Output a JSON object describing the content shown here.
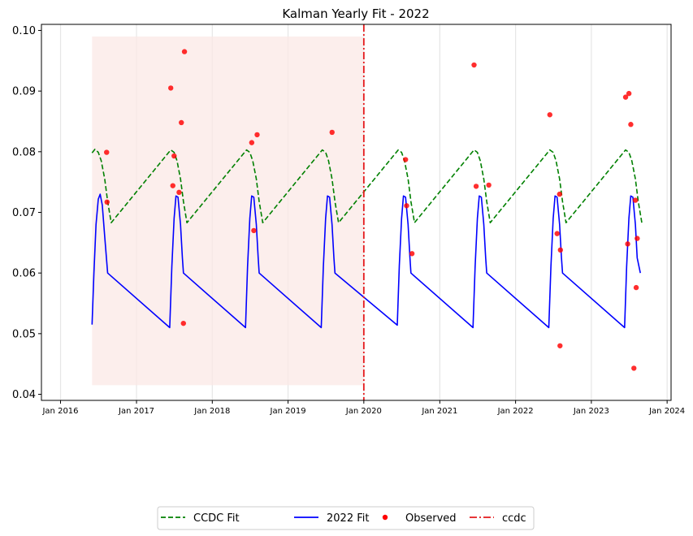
{
  "chart_data": {
    "type": "line",
    "title": "Kalman Yearly Fit - 2022",
    "xlabel": "",
    "ylabel": "",
    "xlim": [
      "2015-10-01",
      "2024-01-20"
    ],
    "ylim": [
      0.039,
      0.101
    ],
    "x_ticks": [
      {
        "date": "2016-01-01",
        "label": "Jan 2016"
      },
      {
        "date": "2017-01-01",
        "label": "Jan 2017"
      },
      {
        "date": "2018-01-01",
        "label": "Jan 2018"
      },
      {
        "date": "2019-01-01",
        "label": "Jan 2019"
      },
      {
        "date": "2020-01-01",
        "label": "Jan 2020"
      },
      {
        "date": "2021-01-01",
        "label": "Jan 2021"
      },
      {
        "date": "2022-01-01",
        "label": "Jan 2022"
      },
      {
        "date": "2023-01-01",
        "label": "Jan 2023"
      },
      {
        "date": "2024-01-01",
        "label": "Jan 2024"
      }
    ],
    "y_ticks": [
      {
        "value": 0.04,
        "label": "0.04"
      },
      {
        "value": 0.05,
        "label": "0.05"
      },
      {
        "value": 0.06,
        "label": "0.06"
      },
      {
        "value": 0.07,
        "label": "0.07"
      },
      {
        "value": 0.08,
        "label": "0.08"
      },
      {
        "value": 0.09,
        "label": "0.09"
      },
      {
        "value": 0.1,
        "label": "0.10"
      }
    ],
    "grid": "vertical",
    "shaded_region": {
      "x_start": "2016-06-01",
      "x_end": "2019-12-31",
      "y_min": 0.0415,
      "y_max": 0.099,
      "color": "#fbe8e6"
    },
    "vlines": [
      {
        "name": "ccdc",
        "date": "2020-01-01",
        "color": "#e41a1c",
        "style": "dashdot"
      }
    ],
    "series": [
      {
        "name": "CCDC Fit",
        "color": "#008000",
        "style": "dashed",
        "points": [
          [
            "2016-06-01",
            0.0798
          ],
          [
            "2016-06-15",
            0.0804
          ],
          [
            "2016-07-01",
            0.0799
          ],
          [
            "2016-07-15",
            0.0785
          ],
          [
            "2016-08-01",
            0.0755
          ],
          [
            "2016-08-15",
            0.0718
          ],
          [
            "2016-09-01",
            0.0683
          ],
          [
            "2017-06-15",
            0.0803
          ],
          [
            "2017-07-01",
            0.0799
          ],
          [
            "2017-07-15",
            0.0785
          ],
          [
            "2017-08-01",
            0.0755
          ],
          [
            "2017-08-15",
            0.0718
          ],
          [
            "2017-09-01",
            0.0683
          ],
          [
            "2018-06-15",
            0.0803
          ],
          [
            "2018-07-01",
            0.0799
          ],
          [
            "2018-07-15",
            0.0785
          ],
          [
            "2018-08-01",
            0.0755
          ],
          [
            "2018-08-15",
            0.0718
          ],
          [
            "2018-09-01",
            0.0683
          ],
          [
            "2019-06-15",
            0.0803
          ],
          [
            "2019-07-01",
            0.0799
          ],
          [
            "2019-07-15",
            0.0785
          ],
          [
            "2019-08-01",
            0.0755
          ],
          [
            "2019-08-15",
            0.0718
          ],
          [
            "2019-09-01",
            0.0683
          ],
          [
            "2020-06-15",
            0.0803
          ],
          [
            "2020-07-01",
            0.0799
          ],
          [
            "2020-07-15",
            0.0785
          ],
          [
            "2020-08-01",
            0.0755
          ],
          [
            "2020-08-15",
            0.0718
          ],
          [
            "2020-09-01",
            0.0683
          ],
          [
            "2021-06-15",
            0.0803
          ],
          [
            "2021-07-01",
            0.0799
          ],
          [
            "2021-07-15",
            0.0785
          ],
          [
            "2021-08-01",
            0.0755
          ],
          [
            "2021-08-15",
            0.0718
          ],
          [
            "2021-09-01",
            0.0683
          ],
          [
            "2022-06-15",
            0.0803
          ],
          [
            "2022-07-01",
            0.0799
          ],
          [
            "2022-07-15",
            0.0785
          ],
          [
            "2022-08-01",
            0.0755
          ],
          [
            "2022-08-15",
            0.0718
          ],
          [
            "2022-09-01",
            0.0683
          ],
          [
            "2023-06-15",
            0.0803
          ],
          [
            "2023-07-01",
            0.0799
          ],
          [
            "2023-07-15",
            0.0785
          ],
          [
            "2023-08-01",
            0.0755
          ],
          [
            "2023-08-15",
            0.0718
          ],
          [
            "2023-09-01",
            0.0683
          ]
        ]
      },
      {
        "name": "2022 Fit",
        "color": "#0000ff",
        "style": "solid",
        "points": [
          [
            "2016-06-01",
            0.0515
          ],
          [
            "2016-06-10",
            0.06
          ],
          [
            "2016-06-20",
            0.068
          ],
          [
            "2016-07-01",
            0.0722
          ],
          [
            "2016-07-10",
            0.073
          ],
          [
            "2016-07-20",
            0.0712
          ],
          [
            "2016-08-01",
            0.066
          ],
          [
            "2016-08-15",
            0.06
          ],
          [
            "2017-06-10",
            0.051
          ],
          [
            "2017-06-20",
            0.061
          ],
          [
            "2017-07-01",
            0.069
          ],
          [
            "2017-07-10",
            0.0727
          ],
          [
            "2017-07-20",
            0.0725
          ],
          [
            "2017-08-01",
            0.068
          ],
          [
            "2017-08-10",
            0.0625
          ],
          [
            "2017-08-15",
            0.06
          ],
          [
            "2018-06-10",
            0.051
          ],
          [
            "2018-06-20",
            0.061
          ],
          [
            "2018-07-01",
            0.069
          ],
          [
            "2018-07-10",
            0.0727
          ],
          [
            "2018-07-20",
            0.0725
          ],
          [
            "2018-08-01",
            0.068
          ],
          [
            "2018-08-10",
            0.0625
          ],
          [
            "2018-08-15",
            0.06
          ],
          [
            "2019-06-10",
            0.051
          ],
          [
            "2019-06-20",
            0.061
          ],
          [
            "2019-07-01",
            0.069
          ],
          [
            "2019-07-10",
            0.0727
          ],
          [
            "2019-07-20",
            0.0725
          ],
          [
            "2019-08-01",
            0.068
          ],
          [
            "2019-08-10",
            0.0625
          ],
          [
            "2019-08-15",
            0.06
          ],
          [
            "2020-06-10",
            0.0514
          ],
          [
            "2020-06-20",
            0.0612
          ],
          [
            "2020-07-01",
            0.069
          ],
          [
            "2020-07-10",
            0.0727
          ],
          [
            "2020-07-20",
            0.0725
          ],
          [
            "2020-08-01",
            0.068
          ],
          [
            "2020-08-10",
            0.0625
          ],
          [
            "2020-08-15",
            0.06
          ],
          [
            "2021-06-10",
            0.051
          ],
          [
            "2021-06-20",
            0.061
          ],
          [
            "2021-07-01",
            0.069
          ],
          [
            "2021-07-10",
            0.0727
          ],
          [
            "2021-07-20",
            0.0725
          ],
          [
            "2021-08-01",
            0.068
          ],
          [
            "2021-08-10",
            0.0625
          ],
          [
            "2021-08-15",
            0.06
          ],
          [
            "2022-06-10",
            0.051
          ],
          [
            "2022-06-20",
            0.061
          ],
          [
            "2022-07-01",
            0.069
          ],
          [
            "2022-07-10",
            0.0727
          ],
          [
            "2022-07-20",
            0.0725
          ],
          [
            "2022-08-01",
            0.068
          ],
          [
            "2022-08-10",
            0.0625
          ],
          [
            "2022-08-15",
            0.06
          ],
          [
            "2023-06-10",
            0.051
          ],
          [
            "2023-06-20",
            0.061
          ],
          [
            "2023-07-01",
            0.069
          ],
          [
            "2023-07-10",
            0.0727
          ],
          [
            "2023-07-20",
            0.0725
          ],
          [
            "2023-08-01",
            0.068
          ],
          [
            "2023-08-10",
            0.0625
          ],
          [
            "2023-08-25",
            0.06
          ]
        ]
      }
    ],
    "observed": {
      "name": "Observed",
      "color": "#ff0000",
      "points": [
        [
          "2016-08-10",
          0.0799
        ],
        [
          "2016-08-12",
          0.0717
        ],
        [
          "2017-06-15",
          0.0905
        ],
        [
          "2017-06-25",
          0.0744
        ],
        [
          "2017-07-01",
          0.0793
        ],
        [
          "2017-07-25",
          0.0733
        ],
        [
          "2017-08-05",
          0.0848
        ],
        [
          "2017-08-15",
          0.0517
        ],
        [
          "2017-08-20",
          0.0965
        ],
        [
          "2018-07-10",
          0.0815
        ],
        [
          "2018-07-20",
          0.067
        ],
        [
          "2018-08-05",
          0.0828
        ],
        [
          "2019-08-01",
          0.0832
        ],
        [
          "2020-07-20",
          0.0787
        ],
        [
          "2020-07-25",
          0.0711
        ],
        [
          "2020-08-20",
          0.0632
        ],
        [
          "2021-06-15",
          0.0943
        ],
        [
          "2021-06-25",
          0.0743
        ],
        [
          "2021-08-25",
          0.0745
        ],
        [
          "2022-06-15",
          0.0861
        ],
        [
          "2022-07-20",
          0.0665
        ],
        [
          "2022-08-01",
          0.073
        ],
        [
          "2022-08-03",
          0.048
        ],
        [
          "2022-08-05",
          0.0638
        ],
        [
          "2023-06-15",
          0.089
        ],
        [
          "2023-06-25",
          0.0648
        ],
        [
          "2023-07-01",
          0.0896
        ],
        [
          "2023-07-10",
          0.0845
        ],
        [
          "2023-07-25",
          0.0443
        ],
        [
          "2023-08-01",
          0.072
        ],
        [
          "2023-08-05",
          0.0576
        ],
        [
          "2023-08-10",
          0.0657
        ]
      ]
    },
    "legend": {
      "placement": "bottom-center",
      "entries": [
        {
          "label": "CCDC Fit",
          "color": "#008000",
          "style": "dashed"
        },
        {
          "label": "2022 Fit",
          "color": "#0000ff",
          "style": "solid"
        },
        {
          "label": "Observed",
          "color": "#ff0000",
          "style": "marker"
        },
        {
          "label": "ccdc",
          "color": "#e41a1c",
          "style": "dashdot"
        }
      ]
    }
  }
}
